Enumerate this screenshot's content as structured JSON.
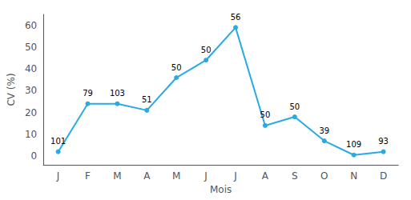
{
  "chart_data": {
    "type": "line",
    "xlabel": "Mois",
    "ylabel": "CV (%)",
    "categories": [
      "J",
      "F",
      "M",
      "A",
      "M",
      "J",
      "J",
      "A",
      "S",
      "O",
      "N",
      "D"
    ],
    "values": [
      2,
      24,
      24,
      21,
      36,
      44,
      59,
      14,
      18,
      7,
      0.5,
      2
    ],
    "annotations": [
      "101",
      "79",
      "103",
      "51",
      "50",
      "50",
      "56",
      "50",
      "50",
      "39",
      "109",
      "93"
    ],
    "color": "#29ABE2",
    "marker": "circle",
    "ylim": [
      -4,
      65
    ],
    "yticks": [
      0,
      10,
      20,
      30,
      40,
      50,
      60
    ],
    "grid": false
  }
}
